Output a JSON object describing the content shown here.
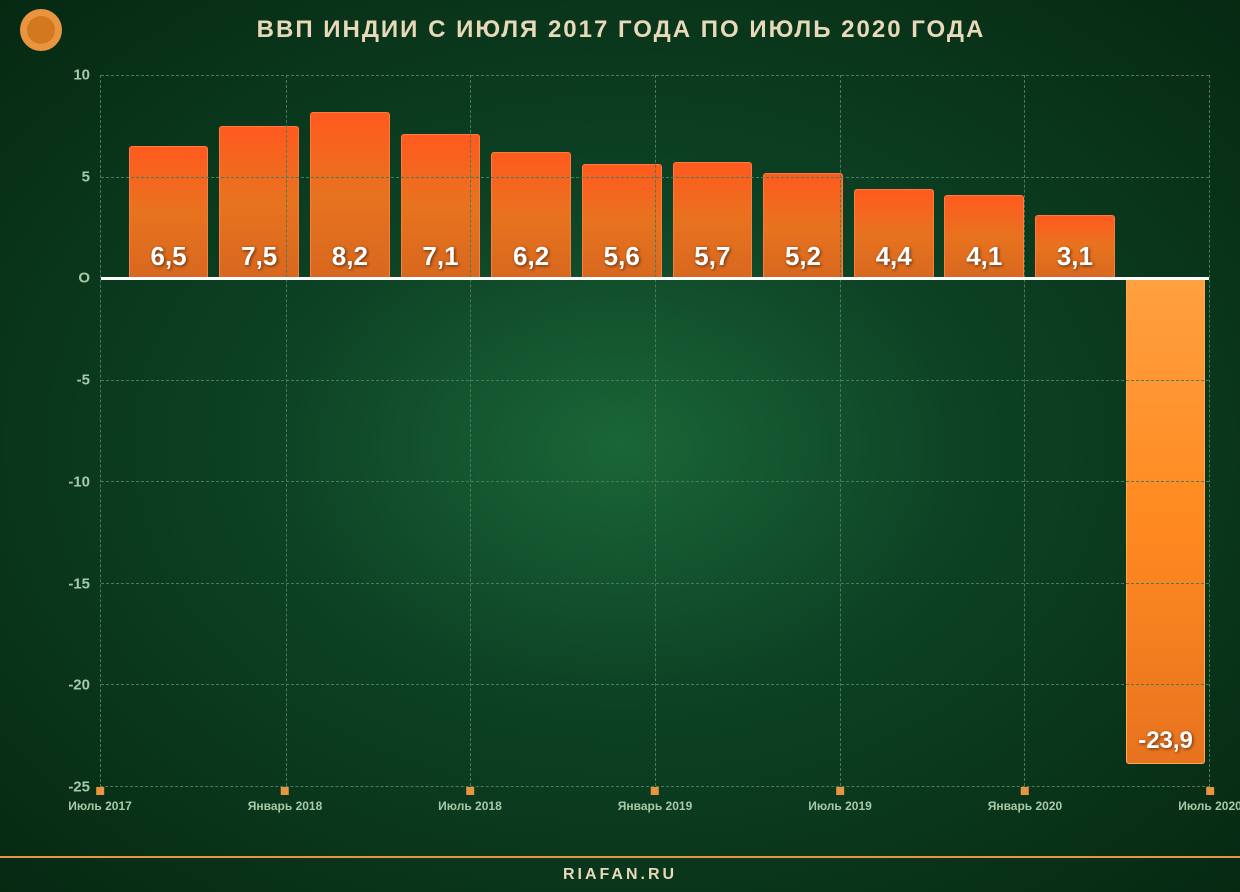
{
  "title": "ВВП ИНДИИ С ИЮЛЯ 2017 ГОДА ПО ИЮЛЬ 2020 ГОДА",
  "footer": "RIAFAN.RU",
  "chart": {
    "type": "bar",
    "ylim": [
      -25,
      10
    ],
    "yticks": [
      10,
      5,
      0,
      -5,
      -10,
      -15,
      -20,
      -25
    ],
    "ytick_labels": [
      "10",
      "5",
      "O",
      "-5",
      "-10",
      "-15",
      "-20",
      "-25"
    ],
    "xticks": [
      {
        "pos": 0,
        "label": "Июль 2017"
      },
      {
        "pos": 16.67,
        "label": "Январь 2018"
      },
      {
        "pos": 33.33,
        "label": "Июль 2018"
      },
      {
        "pos": 50,
        "label": "Январь 2019"
      },
      {
        "pos": 66.67,
        "label": "Июль 2019"
      },
      {
        "pos": 83.33,
        "label": "Январь 2020"
      },
      {
        "pos": 100,
        "label": "Июль 2020"
      }
    ],
    "bars": [
      {
        "value": 6.5,
        "label": "6,5"
      },
      {
        "value": 7.5,
        "label": "7,5"
      },
      {
        "value": 8.2,
        "label": "8,2"
      },
      {
        "value": 7.1,
        "label": "7,1"
      },
      {
        "value": 6.2,
        "label": "6,2"
      },
      {
        "value": 5.6,
        "label": "5,6"
      },
      {
        "value": 5.7,
        "label": "5,7"
      },
      {
        "value": 5.2,
        "label": "5,2"
      },
      {
        "value": 4.4,
        "label": "4,4"
      },
      {
        "value": 4.1,
        "label": "4,1"
      },
      {
        "value": 3.1,
        "label": "3,1"
      },
      {
        "value": -23.9,
        "label": "-23,9"
      }
    ],
    "bar_count": 12,
    "bar_width_pct": 7.2,
    "bar_start_pct": 2.5,
    "bar_spacing_pct": 8.18,
    "title_color": "#e8d9b8",
    "title_fontsize": 24,
    "axis_label_color": "#a8c9a8",
    "axis_fontsize": 15,
    "x_axis_fontsize": 12,
    "bar_label_fontsize": 26,
    "bar_label_color": "#ffffff",
    "grid_color": "#4a7a5a",
    "zero_line_color": "#ffffff",
    "bar_positive_gradient": [
      "#ff5a1f",
      "#e8731f",
      "#d8681f"
    ],
    "bar_negative_gradient": [
      "#ffa040",
      "#ff8a20",
      "#e8731f"
    ],
    "background_gradient": [
      "#1a6638",
      "#0d4224",
      "#062912"
    ],
    "accent_color": "#e89440"
  }
}
